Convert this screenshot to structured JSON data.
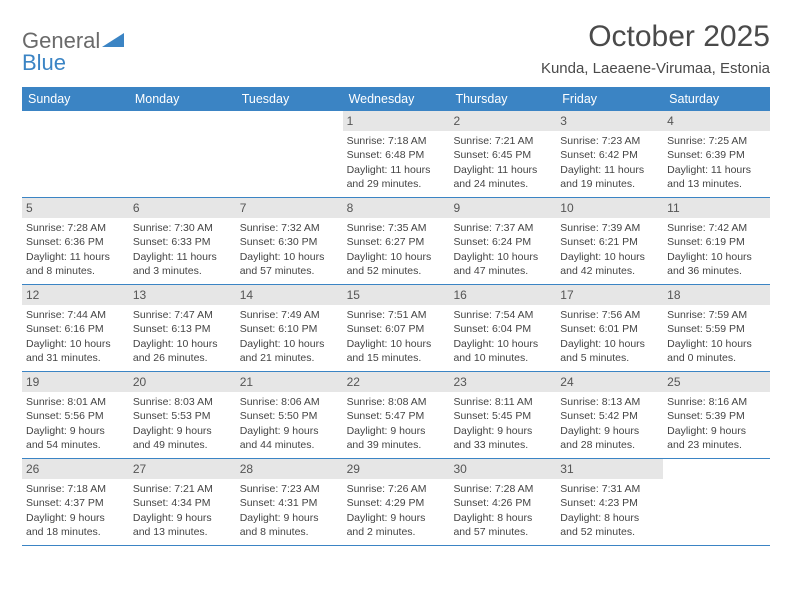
{
  "logo": {
    "text1": "General",
    "text2": "Blue"
  },
  "title": "October 2025",
  "location": "Kunda, Laeaene-Virumaa, Estonia",
  "colors": {
    "header_bg": "#3b84c4",
    "header_text": "#ffffff",
    "daynum_bg": "#e6e6e6",
    "row_border": "#3b84c4",
    "body_text": "#444444",
    "logo_gray": "#6a6a6a",
    "logo_blue": "#3b84c4"
  },
  "day_labels": [
    "Sunday",
    "Monday",
    "Tuesday",
    "Wednesday",
    "Thursday",
    "Friday",
    "Saturday"
  ],
  "weeks": [
    [
      {
        "n": "",
        "empty": true
      },
      {
        "n": "",
        "empty": true
      },
      {
        "n": "",
        "empty": true
      },
      {
        "n": "1",
        "sr": "7:18 AM",
        "ss": "6:48 PM",
        "dl": "11 hours and 29 minutes."
      },
      {
        "n": "2",
        "sr": "7:21 AM",
        "ss": "6:45 PM",
        "dl": "11 hours and 24 minutes."
      },
      {
        "n": "3",
        "sr": "7:23 AM",
        "ss": "6:42 PM",
        "dl": "11 hours and 19 minutes."
      },
      {
        "n": "4",
        "sr": "7:25 AM",
        "ss": "6:39 PM",
        "dl": "11 hours and 13 minutes."
      }
    ],
    [
      {
        "n": "5",
        "sr": "7:28 AM",
        "ss": "6:36 PM",
        "dl": "11 hours and 8 minutes."
      },
      {
        "n": "6",
        "sr": "7:30 AM",
        "ss": "6:33 PM",
        "dl": "11 hours and 3 minutes."
      },
      {
        "n": "7",
        "sr": "7:32 AM",
        "ss": "6:30 PM",
        "dl": "10 hours and 57 minutes."
      },
      {
        "n": "8",
        "sr": "7:35 AM",
        "ss": "6:27 PM",
        "dl": "10 hours and 52 minutes."
      },
      {
        "n": "9",
        "sr": "7:37 AM",
        "ss": "6:24 PM",
        "dl": "10 hours and 47 minutes."
      },
      {
        "n": "10",
        "sr": "7:39 AM",
        "ss": "6:21 PM",
        "dl": "10 hours and 42 minutes."
      },
      {
        "n": "11",
        "sr": "7:42 AM",
        "ss": "6:19 PM",
        "dl": "10 hours and 36 minutes."
      }
    ],
    [
      {
        "n": "12",
        "sr": "7:44 AM",
        "ss": "6:16 PM",
        "dl": "10 hours and 31 minutes."
      },
      {
        "n": "13",
        "sr": "7:47 AM",
        "ss": "6:13 PM",
        "dl": "10 hours and 26 minutes."
      },
      {
        "n": "14",
        "sr": "7:49 AM",
        "ss": "6:10 PM",
        "dl": "10 hours and 21 minutes."
      },
      {
        "n": "15",
        "sr": "7:51 AM",
        "ss": "6:07 PM",
        "dl": "10 hours and 15 minutes."
      },
      {
        "n": "16",
        "sr": "7:54 AM",
        "ss": "6:04 PM",
        "dl": "10 hours and 10 minutes."
      },
      {
        "n": "17",
        "sr": "7:56 AM",
        "ss": "6:01 PM",
        "dl": "10 hours and 5 minutes."
      },
      {
        "n": "18",
        "sr": "7:59 AM",
        "ss": "5:59 PM",
        "dl": "10 hours and 0 minutes."
      }
    ],
    [
      {
        "n": "19",
        "sr": "8:01 AM",
        "ss": "5:56 PM",
        "dl": "9 hours and 54 minutes."
      },
      {
        "n": "20",
        "sr": "8:03 AM",
        "ss": "5:53 PM",
        "dl": "9 hours and 49 minutes."
      },
      {
        "n": "21",
        "sr": "8:06 AM",
        "ss": "5:50 PM",
        "dl": "9 hours and 44 minutes."
      },
      {
        "n": "22",
        "sr": "8:08 AM",
        "ss": "5:47 PM",
        "dl": "9 hours and 39 minutes."
      },
      {
        "n": "23",
        "sr": "8:11 AM",
        "ss": "5:45 PM",
        "dl": "9 hours and 33 minutes."
      },
      {
        "n": "24",
        "sr": "8:13 AM",
        "ss": "5:42 PM",
        "dl": "9 hours and 28 minutes."
      },
      {
        "n": "25",
        "sr": "8:16 AM",
        "ss": "5:39 PM",
        "dl": "9 hours and 23 minutes."
      }
    ],
    [
      {
        "n": "26",
        "sr": "7:18 AM",
        "ss": "4:37 PM",
        "dl": "9 hours and 18 minutes."
      },
      {
        "n": "27",
        "sr": "7:21 AM",
        "ss": "4:34 PM",
        "dl": "9 hours and 13 minutes."
      },
      {
        "n": "28",
        "sr": "7:23 AM",
        "ss": "4:31 PM",
        "dl": "9 hours and 8 minutes."
      },
      {
        "n": "29",
        "sr": "7:26 AM",
        "ss": "4:29 PM",
        "dl": "9 hours and 2 minutes."
      },
      {
        "n": "30",
        "sr": "7:28 AM",
        "ss": "4:26 PM",
        "dl": "8 hours and 57 minutes."
      },
      {
        "n": "31",
        "sr": "7:31 AM",
        "ss": "4:23 PM",
        "dl": "8 hours and 52 minutes."
      },
      {
        "n": "",
        "empty": true
      }
    ]
  ],
  "labels": {
    "sunrise": "Sunrise:",
    "sunset": "Sunset:",
    "daylight": "Daylight:"
  }
}
